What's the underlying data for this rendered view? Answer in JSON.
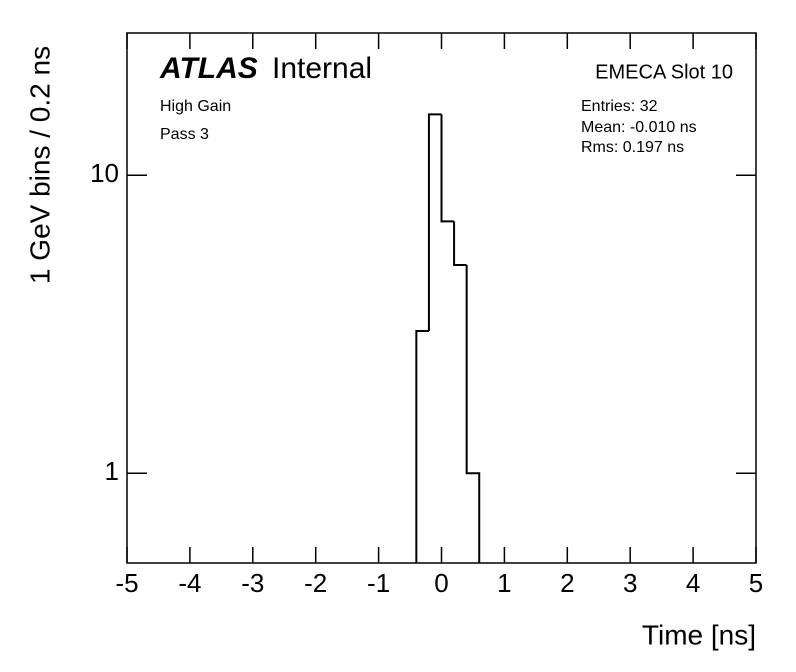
{
  "chart_data": {
    "type": "histogram",
    "atlas_label": "ATLAS",
    "status": "Internal",
    "title": "EMECA Slot 10",
    "annotations": [
      "High Gain",
      "Pass 3"
    ],
    "stats": [
      "Entries: 32",
      "Mean: -0.010 ns",
      "Rms: 0.197 ns"
    ],
    "xlabel": "Time [ns]",
    "ylabel": "1 GeV bins / 0.2 ns",
    "bins": [
      -0.4,
      -0.2,
      0,
      0.2,
      0.4,
      0.6
    ],
    "values": [
      3,
      16,
      7,
      5,
      1
    ],
    "color": "#000000",
    "xlim": [
      -5,
      5
    ],
    "xticks": [
      -5,
      -4,
      -3,
      -2,
      -1,
      0,
      1,
      2,
      3,
      4,
      5
    ],
    "ylim": [
      0.5,
      30
    ],
    "yticks": [
      1,
      10
    ],
    "ylog": true,
    "grid": false
  }
}
